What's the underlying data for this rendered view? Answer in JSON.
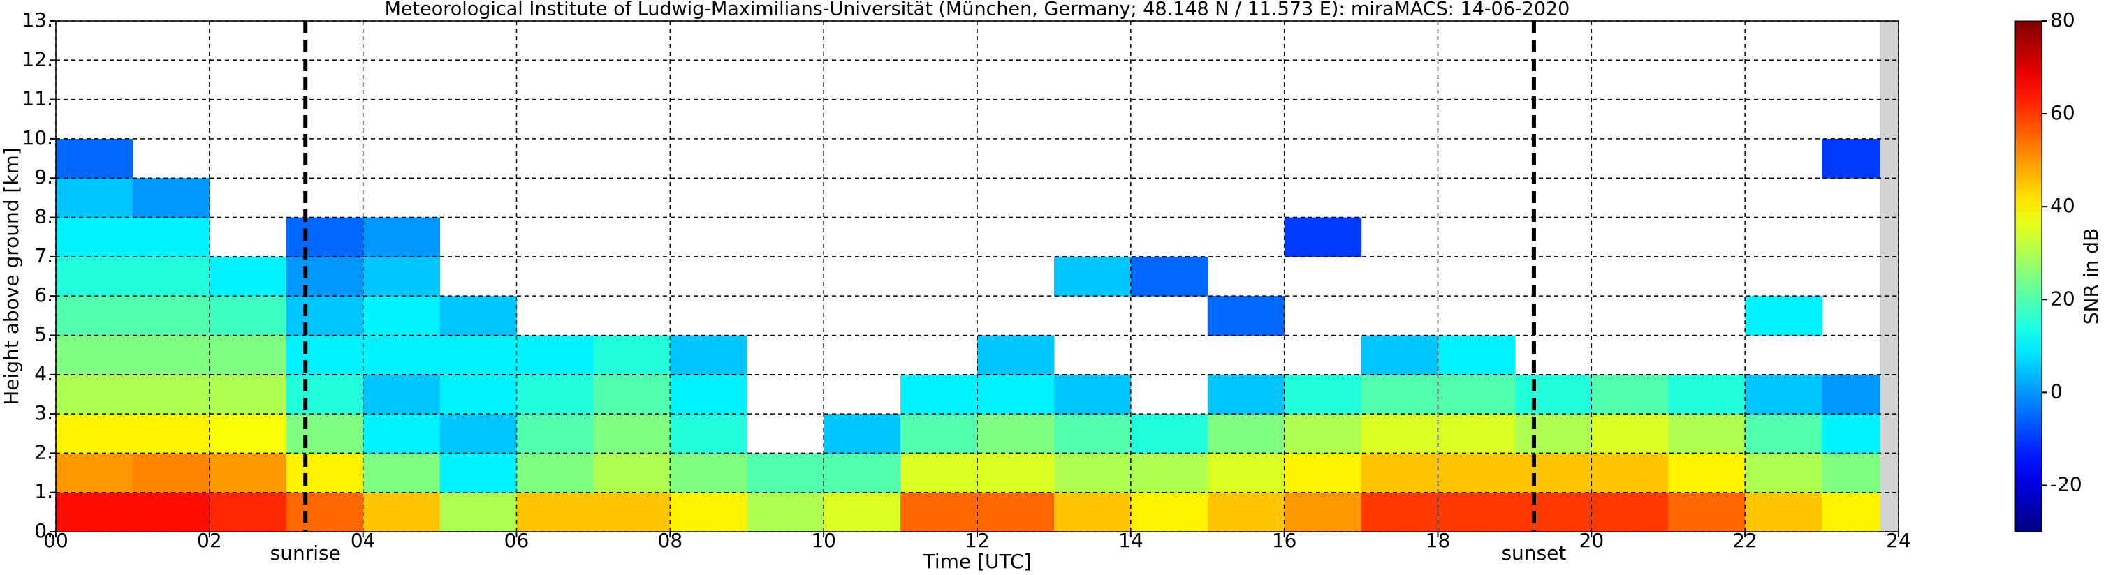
{
  "chart_data": {
    "type": "heatmap",
    "title": "Meteorological Institute of Ludwig-Maximilians-Universität (München, Germany; 48.148 N / 11.573 E):    miraMACS: 14-06-2020",
    "xlabel": "Time [UTC]",
    "ylabel": "Height above ground [km]",
    "xlim": [
      0,
      24
    ],
    "ylim": [
      0,
      13
    ],
    "xticks": [
      {
        "value": 0,
        "label": "00"
      },
      {
        "value": 2,
        "label": "02"
      },
      {
        "value": 4,
        "label": "04"
      },
      {
        "value": 6,
        "label": "06"
      },
      {
        "value": 8,
        "label": "08"
      },
      {
        "value": 10,
        "label": "10"
      },
      {
        "value": 12,
        "label": "12"
      },
      {
        "value": 14,
        "label": "14"
      },
      {
        "value": 16,
        "label": "16"
      },
      {
        "value": 18,
        "label": "18"
      },
      {
        "value": 20,
        "label": "20"
      },
      {
        "value": 22,
        "label": "22"
      },
      {
        "value": 24,
        "label": "24"
      }
    ],
    "yticks": [
      {
        "value": 0,
        "label": "0."
      },
      {
        "value": 1,
        "label": "1."
      },
      {
        "value": 2,
        "label": "2."
      },
      {
        "value": 3,
        "label": "3."
      },
      {
        "value": 4,
        "label": "4."
      },
      {
        "value": 5,
        "label": "5."
      },
      {
        "value": 6,
        "label": "6."
      },
      {
        "value": 7,
        "label": "7."
      },
      {
        "value": 8,
        "label": "8."
      },
      {
        "value": 9,
        "label": "9."
      },
      {
        "value": 10,
        "label": "10."
      },
      {
        "value": 11,
        "label": "11."
      },
      {
        "value": 12,
        "label": "12."
      },
      {
        "value": 13,
        "label": "13."
      }
    ],
    "grid": true,
    "colormap": "jet",
    "x": [
      0.5,
      1.5,
      2.5,
      3.5,
      4.5,
      5.5,
      6.5,
      7.5,
      8.5,
      9.5,
      10.5,
      11.5,
      12.5,
      13.5,
      14.5,
      15.5,
      16.5,
      17.5,
      18.5,
      19.5,
      20.5,
      21.5,
      22.5,
      23.5
    ],
    "y": [
      0.5,
      1.5,
      2.5,
      3.5,
      4.5,
      5.5,
      6.5,
      7.5,
      8.5,
      9.5,
      10.5,
      11.5,
      12.5
    ],
    "z": [
      [
        65,
        50,
        40,
        30,
        25,
        20,
        15,
        10,
        5,
        -5,
        null,
        null,
        null
      ],
      [
        65,
        52,
        40,
        30,
        25,
        20,
        15,
        10,
        0,
        null,
        null,
        null,
        null
      ],
      [
        62,
        50,
        38,
        30,
        25,
        18,
        10,
        null,
        null,
        null,
        null,
        null,
        null
      ],
      [
        55,
        40,
        25,
        15,
        10,
        5,
        0,
        -5,
        null,
        null,
        null,
        null,
        null
      ],
      [
        45,
        25,
        10,
        5,
        10,
        10,
        5,
        0,
        null,
        null,
        null,
        null,
        null
      ],
      [
        30,
        10,
        5,
        10,
        10,
        5,
        null,
        null,
        null,
        null,
        null,
        null,
        null
      ],
      [
        45,
        25,
        20,
        15,
        10,
        null,
        null,
        null,
        null,
        null,
        null,
        null,
        null
      ],
      [
        45,
        30,
        25,
        20,
        15,
        null,
        null,
        null,
        null,
        null,
        null,
        null,
        null
      ],
      [
        40,
        25,
        15,
        10,
        5,
        null,
        null,
        null,
        null,
        null,
        null,
        null,
        null
      ],
      [
        30,
        20,
        null,
        null,
        null,
        null,
        null,
        null,
        null,
        null,
        null,
        null,
        null
      ],
      [
        35,
        20,
        5,
        null,
        null,
        null,
        null,
        null,
        null,
        null,
        null,
        null,
        null
      ],
      [
        55,
        35,
        20,
        10,
        null,
        null,
        null,
        null,
        null,
        null,
        null,
        null,
        null
      ],
      [
        55,
        35,
        25,
        10,
        5,
        null,
        null,
        null,
        null,
        null,
        null,
        null,
        null
      ],
      [
        45,
        30,
        20,
        5,
        null,
        null,
        5,
        null,
        null,
        null,
        null,
        null,
        null
      ],
      [
        40,
        30,
        15,
        null,
        null,
        null,
        -5,
        null,
        null,
        null,
        null,
        null,
        null
      ],
      [
        45,
        35,
        25,
        5,
        null,
        -5,
        null,
        null,
        null,
        null,
        null,
        null,
        null
      ],
      [
        50,
        40,
        30,
        15,
        null,
        null,
        null,
        -10,
        null,
        null,
        null,
        null,
        null
      ],
      [
        60,
        45,
        35,
        20,
        5,
        null,
        null,
        null,
        null,
        null,
        null,
        null,
        null
      ],
      [
        60,
        45,
        35,
        20,
        10,
        null,
        null,
        null,
        null,
        null,
        null,
        null,
        null
      ],
      [
        60,
        45,
        30,
        15,
        null,
        null,
        null,
        null,
        null,
        null,
        null,
        null,
        null
      ],
      [
        60,
        45,
        35,
        20,
        null,
        null,
        null,
        null,
        null,
        null,
        null,
        null,
        null
      ],
      [
        55,
        40,
        30,
        15,
        null,
        null,
        null,
        null,
        null,
        null,
        null,
        null,
        null
      ],
      [
        45,
        30,
        20,
        5,
        null,
        10,
        null,
        null,
        null,
        null,
        null,
        null,
        null
      ],
      [
        40,
        25,
        10,
        0,
        null,
        null,
        null,
        null,
        null,
        -10,
        null,
        null,
        null
      ]
    ],
    "annotations": [
      {
        "x": 3.25,
        "label": "sunrise"
      },
      {
        "x": 19.25,
        "label": "sunset"
      }
    ],
    "colorbar": {
      "label": "SNR in dB",
      "lim": [
        -30,
        80
      ],
      "ticks": [
        -20,
        0,
        20,
        40,
        60,
        80
      ]
    }
  }
}
